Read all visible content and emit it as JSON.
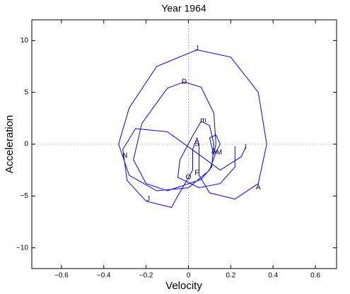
{
  "chart_data": {
    "type": "line",
    "title": "Year 1964",
    "xlabel": "Velocity",
    "ylabel": "Acceleration",
    "xlim": [
      -0.74,
      0.7
    ],
    "ylim": [
      -12,
      12
    ],
    "xticks": [
      {
        "value": -0.6,
        "label": "−0.6"
      },
      {
        "value": -0.4,
        "label": "−0.4"
      },
      {
        "value": -0.2,
        "label": "−0.2"
      },
      0,
      0.2,
      0.4,
      0.6
    ],
    "yticks": [
      {
        "value": -10,
        "label": "−10"
      },
      {
        "value": -5,
        "label": "−5"
      },
      0,
      5,
      10
    ],
    "zero_lines": true,
    "series": [
      {
        "color": "#0000ff",
        "x": [
          0.22,
          0.22,
          0.15,
          0.05,
          -0.05,
          -0.04,
          0.02,
          0.06,
          0.1,
          0.12,
          0.11,
          0.06,
          -0.1,
          -0.2,
          -0.26,
          -0.22,
          -0.1,
          -0.02,
          0.06,
          0.12,
          0.13,
          0.12,
          0.1,
          0.13,
          0.15,
          0.13,
          0.1,
          0.0,
          -0.15,
          -0.28,
          -0.33,
          -0.28,
          -0.15,
          0.04,
          0.2,
          0.33,
          0.37,
          0.33,
          0.22,
          0.1,
          0.05,
          0.05,
          0.04,
          0.02,
          0.02,
          -0.05,
          -0.08,
          -0.2,
          -0.29,
          -0.31,
          -0.25,
          -0.1,
          0.05,
          0.15,
          0.25,
          0.27
        ],
        "values": [
          -0.2,
          -2.2,
          -3.8,
          -4.2,
          -3.2,
          -1.5,
          0.8,
          2.2,
          1.8,
          0.0,
          -2.2,
          -3.4,
          -4.5,
          -3.8,
          -1.5,
          2.0,
          5.4,
          6.0,
          5.5,
          3.0,
          0.0,
          -1.0,
          0.6,
          0.9,
          0.0,
          -0.8,
          -2.5,
          -4.2,
          -4.5,
          -3.0,
          0.0,
          3.5,
          7.5,
          9.1,
          8.4,
          5.0,
          0.0,
          -3.8,
          -5.3,
          -4.7,
          -3.0,
          0.0,
          0.6,
          -0.5,
          -2.5,
          -5.0,
          -6.1,
          -5.5,
          -3.5,
          -0.5,
          1.5,
          1.2,
          -1.0,
          -2.5,
          -1.2,
          -0.3
        ]
      }
    ],
    "annotations": [
      {
        "text": "J",
        "x": 0.04,
        "y": 9.2
      },
      {
        "text": "D",
        "x": -0.02,
        "y": 6.0
      },
      {
        "text": "m",
        "x": 0.07,
        "y": 2.3
      },
      {
        "text": "S",
        "x": 0.04,
        "y": 0.0
      },
      {
        "text": "M",
        "x": 0.145,
        "y": -0.8
      },
      {
        "text": "A",
        "x": 0.12,
        "y": -0.7
      },
      {
        "text": "I",
        "x": 0.27,
        "y": -0.3
      },
      {
        "text": "N",
        "x": -0.3,
        "y": -1.1
      },
      {
        "text": "O",
        "x": 0.0,
        "y": -3.2
      },
      {
        "text": "F",
        "x": 0.04,
        "y": -2.8
      },
      {
        "text": "A",
        "x": 0.33,
        "y": -4.2
      },
      {
        "text": "J",
        "x": -0.19,
        "y": -5.3
      }
    ]
  }
}
